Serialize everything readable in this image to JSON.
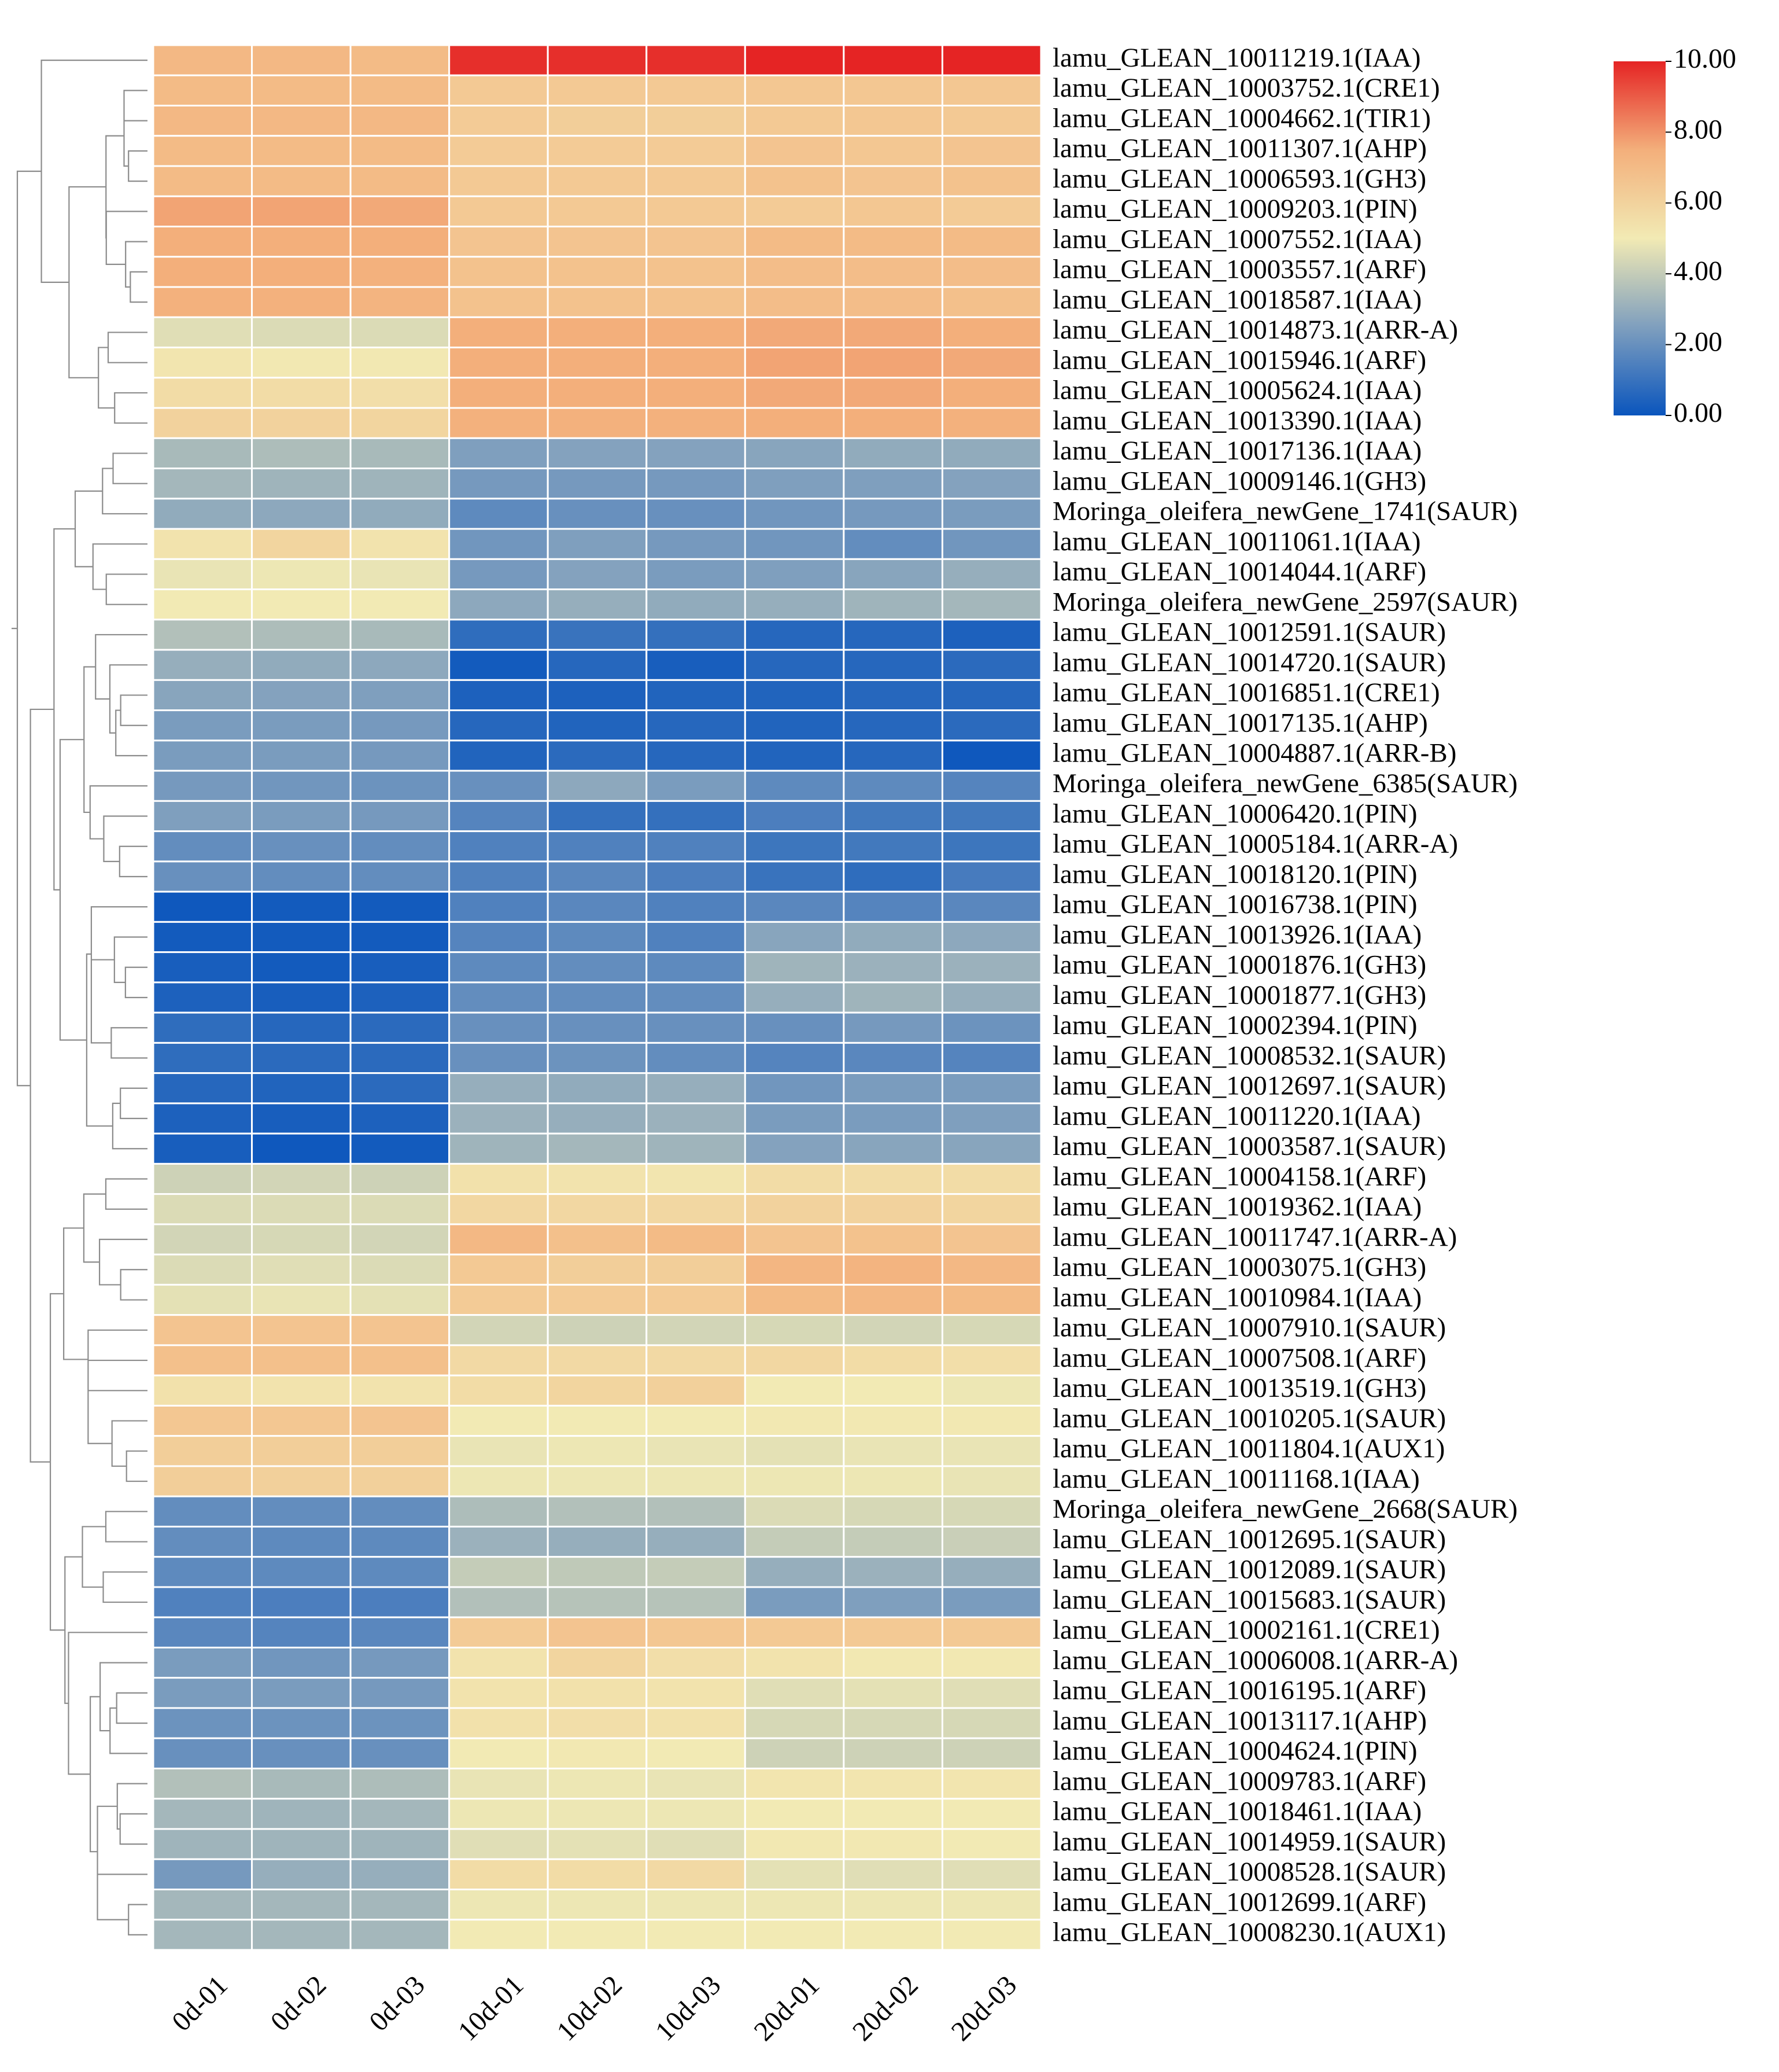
{
  "chart_data": {
    "type": "heatmap",
    "title": "",
    "columns": [
      "0d-01",
      "0d-02",
      "0d-03",
      "10d-01",
      "10d-02",
      "10d-03",
      "20d-01",
      "20d-02",
      "20d-03"
    ],
    "rows": [
      "lamu_GLEAN_10011219.1(IAA)",
      "lamu_GLEAN_10003752.1(CRE1)",
      "lamu_GLEAN_10004662.1(TIR1)",
      "lamu_GLEAN_10011307.1(AHP)",
      "lamu_GLEAN_10006593.1(GH3)",
      "lamu_GLEAN_10009203.1(PIN)",
      "lamu_GLEAN_10007552.1(IAA)",
      "lamu_GLEAN_10003557.1(ARF)",
      "lamu_GLEAN_10018587.1(IAA)",
      "lamu_GLEAN_10014873.1(ARR-A)",
      "lamu_GLEAN_10015946.1(ARF)",
      "lamu_GLEAN_10005624.1(IAA)",
      "lamu_GLEAN_10013390.1(IAA)",
      "lamu_GLEAN_10017136.1(IAA)",
      "lamu_GLEAN_10009146.1(GH3)",
      "Moringa_oleifera_newGene_1741(SAUR)",
      "lamu_GLEAN_10011061.1(IAA)",
      "lamu_GLEAN_10014044.1(ARF)",
      "Moringa_oleifera_newGene_2597(SAUR)",
      "lamu_GLEAN_10012591.1(SAUR)",
      "lamu_GLEAN_10014720.1(SAUR)",
      "lamu_GLEAN_10016851.1(CRE1)",
      "lamu_GLEAN_10017135.1(AHP)",
      "lamu_GLEAN_10004887.1(ARR-B)",
      "Moringa_oleifera_newGene_6385(SAUR)",
      "lamu_GLEAN_10006420.1(PIN)",
      "lamu_GLEAN_10005184.1(ARR-A)",
      "lamu_GLEAN_10018120.1(PIN)",
      "lamu_GLEAN_10016738.1(PIN)",
      "lamu_GLEAN_10013926.1(IAA)",
      "lamu_GLEAN_10001876.1(GH3)",
      "lamu_GLEAN_10001877.1(GH3)",
      "lamu_GLEAN_10002394.1(PIN)",
      "lamu_GLEAN_10008532.1(SAUR)",
      "lamu_GLEAN_10012697.1(SAUR)",
      "lamu_GLEAN_10011220.1(IAA)",
      "lamu_GLEAN_10003587.1(SAUR)",
      "lamu_GLEAN_10004158.1(ARF)",
      "lamu_GLEAN_10019362.1(IAA)",
      "lamu_GLEAN_10011747.1(ARR-A)",
      "lamu_GLEAN_10003075.1(GH3)",
      "lamu_GLEAN_10010984.1(IAA)",
      "lamu_GLEAN_10007910.1(SAUR)",
      "lamu_GLEAN_10007508.1(ARF)",
      "lamu_GLEAN_10013519.1(GH3)",
      "lamu_GLEAN_10010205.1(SAUR)",
      "lamu_GLEAN_10011804.1(AUX1)",
      "lamu_GLEAN_10011168.1(IAA)",
      "Moringa_oleifera_newGene_2668(SAUR)",
      "lamu_GLEAN_10012695.1(SAUR)",
      "lamu_GLEAN_10012089.1(SAUR)",
      "lamu_GLEAN_10015683.1(SAUR)",
      "lamu_GLEAN_10002161.1(CRE1)",
      "lamu_GLEAN_10006008.1(ARR-A)",
      "lamu_GLEAN_10016195.1(ARF)",
      "lamu_GLEAN_10013117.1(AHP)",
      "lamu_GLEAN_10004624.1(PIN)",
      "lamu_GLEAN_10009783.1(ARF)",
      "lamu_GLEAN_10018461.1(IAA)",
      "lamu_GLEAN_10014959.1(SAUR)",
      "lamu_GLEAN_10008528.1(SAUR)",
      "lamu_GLEAN_10012699.1(ARF)",
      "lamu_GLEAN_10008230.1(AUX1)"
    ],
    "values": [
      [
        7.1,
        7.1,
        7.0,
        9.8,
        9.8,
        9.8,
        10.0,
        10.0,
        10.0
      ],
      [
        7.0,
        7.0,
        7.0,
        6.4,
        6.4,
        6.4,
        6.5,
        6.5,
        6.5
      ],
      [
        7.1,
        7.1,
        7.1,
        6.3,
        6.2,
        6.2,
        6.4,
        6.5,
        6.4
      ],
      [
        7.0,
        7.0,
        7.0,
        6.3,
        6.3,
        6.3,
        6.6,
        6.5,
        6.6
      ],
      [
        7.0,
        7.0,
        7.0,
        6.4,
        6.4,
        6.4,
        6.7,
        6.6,
        6.7
      ],
      [
        7.7,
        7.7,
        7.6,
        6.4,
        6.4,
        6.4,
        6.3,
        6.5,
        6.3
      ],
      [
        7.5,
        7.5,
        7.5,
        6.6,
        6.6,
        6.6,
        7.0,
        7.0,
        7.0
      ],
      [
        7.5,
        7.5,
        7.4,
        6.7,
        6.7,
        6.7,
        6.9,
        6.9,
        6.9
      ],
      [
        7.4,
        7.4,
        7.3,
        6.7,
        6.7,
        6.7,
        6.9,
        6.9,
        6.8
      ],
      [
        4.6,
        4.5,
        4.5,
        7.5,
        7.5,
        7.5,
        7.6,
        7.6,
        7.5
      ],
      [
        5.2,
        5.1,
        5.1,
        7.5,
        7.5,
        7.5,
        7.7,
        7.7,
        7.6
      ],
      [
        5.6,
        5.6,
        5.5,
        7.5,
        7.5,
        7.5,
        7.6,
        7.6,
        7.5
      ],
      [
        6.0,
        6.0,
        5.9,
        7.4,
        7.4,
        7.4,
        7.5,
        7.5,
        7.4
      ],
      [
        3.4,
        3.5,
        3.4,
        2.5,
        2.6,
        2.6,
        2.7,
        2.9,
        2.9
      ],
      [
        3.3,
        3.2,
        3.2,
        2.3,
        2.3,
        2.3,
        2.5,
        2.5,
        2.6
      ],
      [
        2.9,
        2.8,
        2.9,
        1.8,
        2.0,
        2.0,
        2.2,
        2.3,
        2.4
      ],
      [
        5.3,
        5.9,
        5.3,
        2.2,
        2.5,
        2.3,
        2.2,
        1.9,
        2.2
      ],
      [
        4.8,
        4.9,
        4.8,
        2.3,
        2.6,
        2.4,
        2.5,
        2.7,
        3.0
      ],
      [
        5.0,
        5.0,
        5.0,
        2.8,
        3.0,
        2.9,
        3.0,
        3.2,
        3.3
      ],
      [
        3.6,
        3.5,
        3.4,
        0.8,
        1.0,
        0.9,
        0.6,
        0.6,
        0.4
      ],
      [
        3.0,
        2.9,
        2.8,
        0.2,
        0.6,
        0.3,
        0.6,
        0.6,
        0.7
      ],
      [
        2.7,
        2.6,
        2.5,
        0.4,
        0.4,
        0.5,
        0.5,
        0.6,
        0.6
      ],
      [
        2.4,
        2.4,
        2.3,
        0.6,
        0.5,
        0.6,
        0.5,
        0.6,
        0.7
      ],
      [
        2.4,
        2.4,
        2.3,
        0.5,
        0.7,
        0.6,
        0.5,
        0.6,
        0.1
      ],
      [
        2.3,
        2.2,
        2.1,
        2.0,
        2.8,
        2.4,
        1.8,
        1.8,
        1.6
      ],
      [
        2.5,
        2.4,
        2.3,
        1.6,
        0.9,
        0.9,
        1.4,
        1.2,
        1.2
      ],
      [
        1.9,
        2.0,
        1.9,
        1.5,
        1.5,
        1.5,
        1.1,
        1.2,
        1.1
      ],
      [
        2.0,
        1.9,
        1.9,
        1.5,
        1.7,
        1.4,
        1.0,
        0.8,
        1.3
      ],
      [
        0.1,
        0.2,
        0.2,
        1.5,
        1.7,
        1.5,
        1.7,
        1.6,
        1.7
      ],
      [
        0.2,
        0.2,
        0.2,
        1.6,
        1.8,
        1.5,
        2.7,
        2.9,
        2.8
      ],
      [
        0.3,
        0.2,
        0.3,
        1.8,
        1.9,
        1.8,
        3.2,
        3.1,
        3.1
      ],
      [
        0.4,
        0.3,
        0.4,
        1.9,
        1.9,
        1.9,
        3.0,
        3.2,
        3.0
      ],
      [
        0.8,
        0.6,
        0.7,
        2.0,
        2.0,
        2.0,
        2.0,
        2.3,
        2.1
      ],
      [
        0.8,
        0.7,
        0.7,
        2.0,
        2.1,
        1.9,
        1.6,
        1.7,
        1.6
      ],
      [
        0.6,
        0.5,
        0.7,
        3.0,
        2.9,
        3.0,
        2.2,
        2.4,
        2.4
      ],
      [
        0.4,
        0.3,
        0.4,
        3.1,
        3.0,
        3.1,
        2.4,
        2.4,
        2.5
      ],
      [
        0.3,
        0.1,
        0.2,
        3.2,
        3.3,
        3.2,
        2.6,
        2.7,
        2.7
      ],
      [
        4.2,
        4.3,
        4.2,
        5.4,
        5.3,
        5.2,
        5.6,
        5.6,
        5.6
      ],
      [
        4.5,
        4.5,
        4.5,
        5.8,
        5.8,
        5.8,
        6.0,
        6.0,
        5.9
      ],
      [
        4.3,
        4.4,
        4.3,
        7.1,
        6.8,
        7.0,
        6.6,
        6.7,
        6.6
      ],
      [
        4.5,
        4.6,
        4.5,
        6.4,
        6.2,
        6.2,
        7.2,
        7.3,
        7.1
      ],
      [
        4.7,
        4.8,
        4.7,
        6.3,
        6.3,
        6.3,
        7.0,
        7.1,
        7.0
      ],
      [
        6.6,
        6.6,
        6.6,
        4.3,
        4.2,
        4.3,
        4.4,
        4.3,
        4.4
      ],
      [
        6.8,
        6.8,
        6.8,
        5.7,
        5.7,
        5.7,
        5.8,
        5.6,
        5.5
      ],
      [
        5.4,
        5.3,
        5.3,
        5.6,
        5.9,
        6.1,
        5.0,
        5.0,
        4.9
      ],
      [
        6.5,
        6.5,
        6.6,
        5.0,
        5.0,
        5.0,
        5.1,
        5.1,
        5.1
      ],
      [
        6.2,
        6.2,
        6.2,
        4.8,
        4.9,
        4.8,
        4.7,
        4.8,
        4.8
      ],
      [
        6.2,
        6.1,
        6.1,
        4.9,
        4.9,
        4.9,
        4.9,
        4.9,
        4.8
      ],
      [
        1.9,
        1.9,
        1.9,
        3.5,
        3.6,
        3.6,
        4.5,
        4.4,
        4.4
      ],
      [
        1.9,
        1.8,
        1.8,
        3.1,
        3.0,
        3.0,
        4.0,
        4.0,
        4.1
      ],
      [
        1.8,
        1.8,
        1.8,
        4.0,
        3.9,
        4.0,
        3.0,
        3.1,
        3.0
      ],
      [
        1.5,
        1.4,
        1.4,
        3.6,
        3.7,
        3.7,
        2.4,
        2.5,
        2.4
      ],
      [
        1.7,
        1.6,
        1.7,
        6.3,
        6.6,
        6.5,
        6.4,
        6.4,
        6.4
      ],
      [
        2.4,
        2.2,
        2.3,
        5.3,
        5.9,
        5.5,
        5.3,
        5.1,
        5.1
      ],
      [
        2.4,
        2.4,
        2.3,
        5.3,
        5.4,
        5.3,
        4.6,
        4.7,
        4.6
      ],
      [
        2.1,
        2.1,
        2.1,
        5.4,
        5.5,
        5.4,
        4.4,
        4.4,
        4.4
      ],
      [
        2.0,
        2.0,
        2.0,
        5.0,
        5.1,
        5.0,
        4.2,
        4.2,
        4.2
      ],
      [
        3.6,
        3.4,
        3.5,
        4.8,
        4.9,
        4.8,
        5.2,
        5.2,
        5.2
      ],
      [
        3.3,
        3.2,
        3.3,
        4.9,
        4.9,
        4.9,
        5.0,
        5.0,
        5.0
      ],
      [
        3.2,
        3.2,
        3.2,
        4.6,
        4.7,
        4.6,
        5.1,
        5.1,
        5.0
      ],
      [
        2.3,
        3.0,
        3.0,
        5.6,
        5.6,
        5.7,
        4.7,
        4.6,
        4.6
      ],
      [
        3.3,
        3.3,
        3.3,
        4.9,
        4.9,
        4.9,
        4.9,
        4.9,
        4.9
      ],
      [
        3.3,
        3.3,
        3.3,
        5.0,
        5.0,
        5.0,
        5.0,
        5.0,
        5.0
      ]
    ],
    "color_scale": {
      "min": 0.0,
      "max": 10.0,
      "stops": [
        "#0a55bd",
        "#7f9fbe",
        "#f2eab4",
        "#f3af7b",
        "#e52424"
      ],
      "ticks": [
        "0.00",
        "2.00",
        "4.00",
        "6.00",
        "8.00",
        "10.00"
      ]
    },
    "row_dendrogram": true,
    "legend_position": "top-right"
  }
}
